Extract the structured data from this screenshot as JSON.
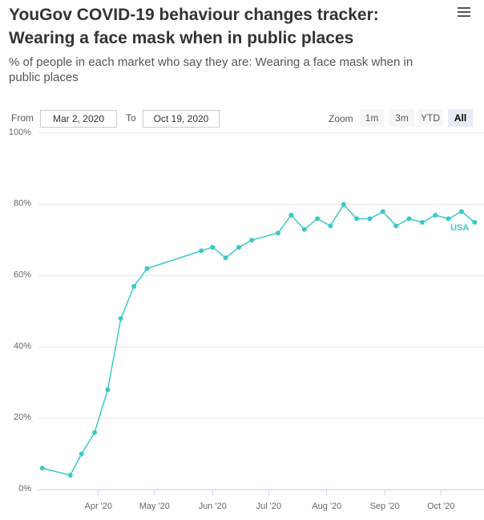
{
  "chart_data": {
    "type": "line",
    "title": "YouGov COVID-19 behaviour changes tracker: Wearing a face mask when in public places",
    "subtitle": "% of people in each market who say they are: Wearing a face mask when in public places",
    "range_selector": {
      "from_label": "From",
      "from": "Mar 2, 2020",
      "to_label": "To",
      "to": "Oct 19, 2020",
      "zoom_label": "Zoom",
      "buttons": [
        "1m",
        "3m",
        "YTD",
        "All"
      ],
      "selected_button": 3
    },
    "x": [
      "2020-03-02",
      "2020-03-17",
      "2020-03-23",
      "2020-03-30",
      "2020-04-06",
      "2020-04-13",
      "2020-04-20",
      "2020-04-27",
      "2020-05-26",
      "2020-06-01",
      "2020-06-08",
      "2020-06-15",
      "2020-06-22",
      "2020-07-06",
      "2020-07-13",
      "2020-07-20",
      "2020-07-27",
      "2020-08-03",
      "2020-08-10",
      "2020-08-17",
      "2020-08-24",
      "2020-08-31",
      "2020-09-07",
      "2020-09-14",
      "2020-09-21",
      "2020-09-28",
      "2020-10-05",
      "2020-10-12",
      "2020-10-19"
    ],
    "series": [
      {
        "name": "USA",
        "color": "#3cc8c8",
        "values": [
          6,
          4,
          10,
          16,
          28,
          48,
          57,
          62,
          67,
          68,
          65,
          68,
          70,
          72,
          77,
          73,
          76,
          74,
          80,
          76,
          76,
          78,
          74,
          76,
          75,
          77,
          76,
          78,
          75
        ]
      }
    ],
    "xlim": [
      "2020-02-29",
      "2020-10-24"
    ],
    "xticks": [
      {
        "value": "2020-04-01",
        "label": "Apr '20"
      },
      {
        "value": "2020-05-01",
        "label": "May '20"
      },
      {
        "value": "2020-06-01",
        "label": "Jun '20"
      },
      {
        "value": "2020-07-01",
        "label": "Jul '20"
      },
      {
        "value": "2020-08-01",
        "label": "Aug '20"
      },
      {
        "value": "2020-09-01",
        "label": "Sep '20"
      },
      {
        "value": "2020-10-01",
        "label": "Oct '20"
      }
    ],
    "ylim": [
      0,
      100
    ],
    "yticks": [
      {
        "value": 0,
        "label": "0%"
      },
      {
        "value": 20,
        "label": "20%"
      },
      {
        "value": 40,
        "label": "40%"
      },
      {
        "value": 60,
        "label": "60%"
      },
      {
        "value": 80,
        "label": "80%"
      },
      {
        "value": 100,
        "label": "100%"
      }
    ],
    "grid": true
  }
}
